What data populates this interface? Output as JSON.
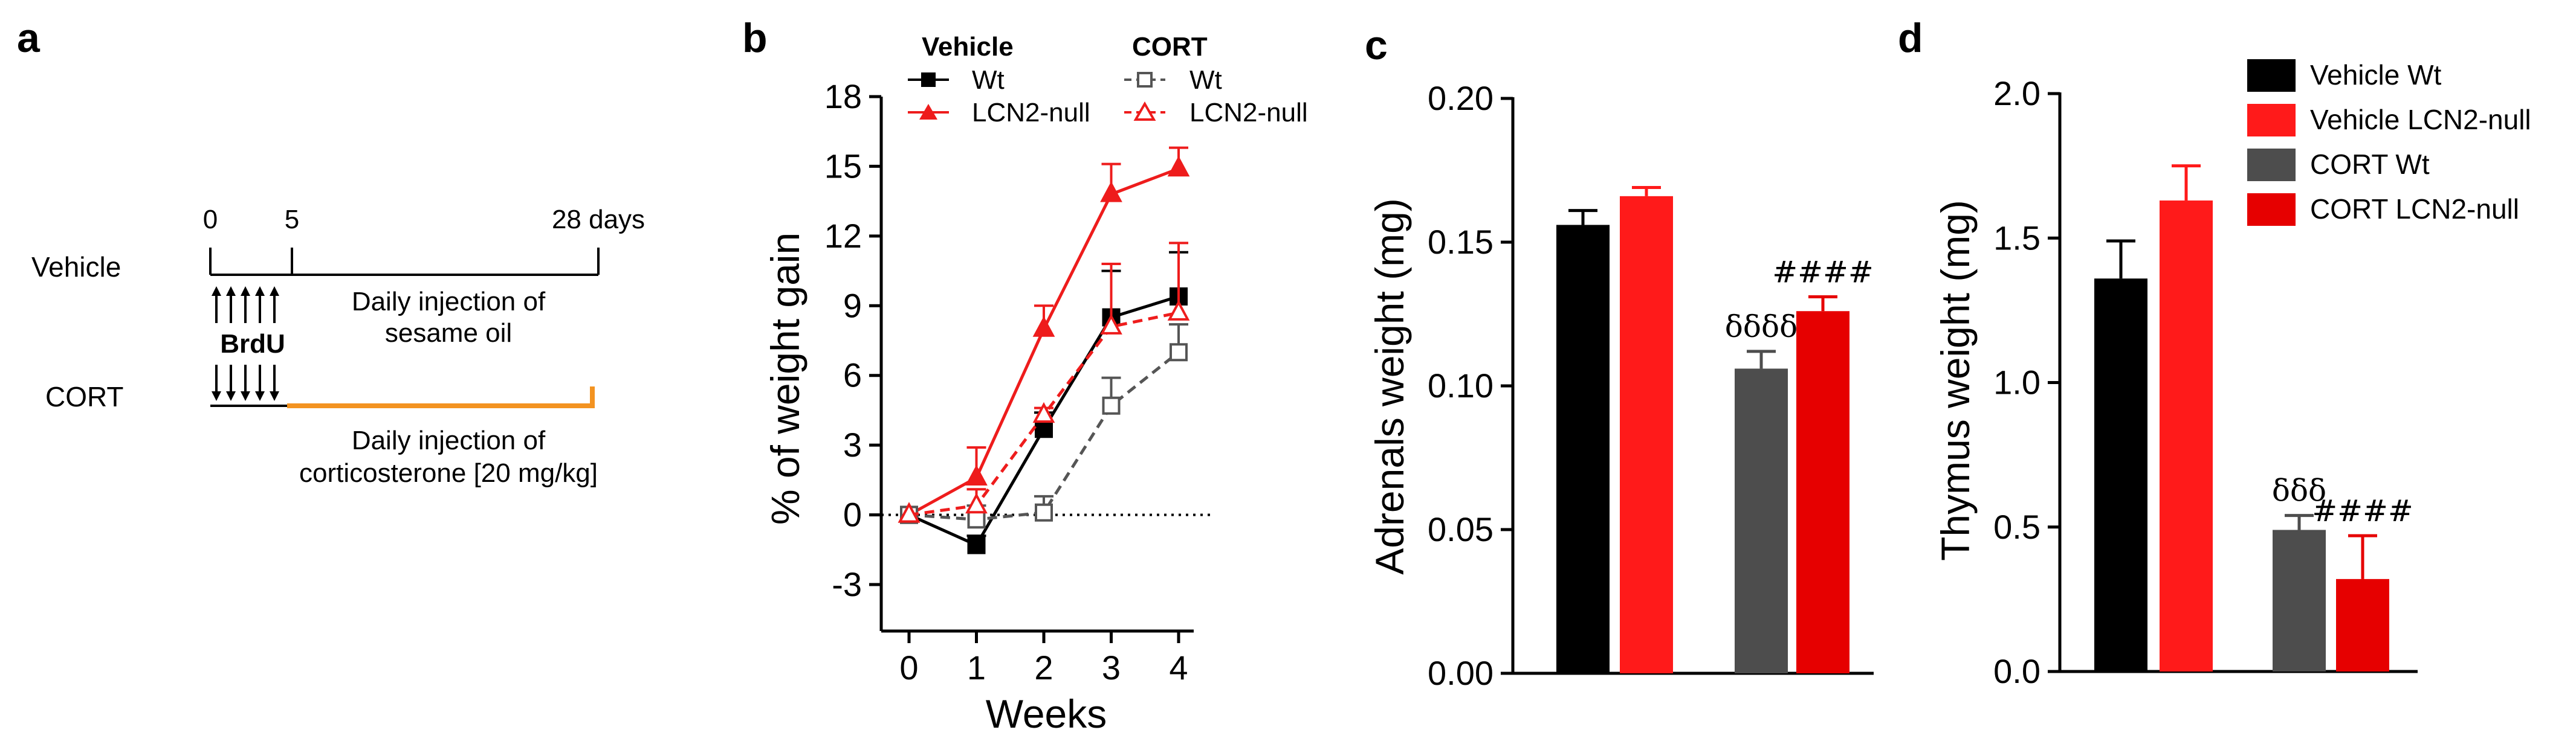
{
  "panels": {
    "a": {
      "letter": "a",
      "labels": {
        "vehicle": "Vehicle",
        "cort": "CORT",
        "day0": "0",
        "day5": "5",
        "day28": "28 days",
        "brdu": "BrdU",
        "veh_line1": "Daily injection of",
        "veh_line2": "sesame oil",
        "cort_line1": "Daily injection of",
        "cort_line2": "corticosterone [20 mg/kg]"
      },
      "colors": {
        "timeline": "#000000",
        "cort_treatment": "#f39321"
      },
      "arrow_count": 5
    },
    "b": {
      "letter": "b",
      "legend": {
        "vehicle_head": "Vehicle",
        "cort_head": "CORT",
        "veh_wt": "Wt",
        "veh_null": "LCN2-null",
        "cort_wt": "Wt",
        "cort_null": "LCN2-null"
      }
    },
    "c": {
      "letter": "c"
    },
    "d": {
      "letter": "d",
      "legend": [
        "Vehicle Wt",
        "Vehicle LCN2-null",
        "CORT Wt",
        "CORT LCN2-null"
      ]
    }
  },
  "chart_data": [
    {
      "id": "b",
      "type": "line",
      "title": "",
      "xlabel": "Weeks",
      "ylabel": "% of weight gain",
      "x": [
        0,
        1,
        2,
        3,
        4
      ],
      "xticks": [
        "0",
        "1",
        "2",
        "3",
        "4"
      ],
      "yticks": [
        "-3",
        "0",
        "3",
        "6",
        "9",
        "12",
        "15",
        "18"
      ],
      "ylim": [
        -5,
        18
      ],
      "reference_line_y": 0,
      "series": [
        {
          "name": "Vehicle Wt",
          "color": "#000000",
          "marker": "square",
          "filled": true,
          "dashed": false,
          "values": [
            0,
            -1.3,
            3.7,
            8.5,
            9.4
          ],
          "errors": [
            0,
            0.4,
            0.7,
            2.0,
            1.9
          ]
        },
        {
          "name": "Vehicle LCN2-null",
          "color": "#ee1c1c",
          "marker": "triangle",
          "filled": true,
          "dashed": false,
          "values": [
            0,
            1.6,
            8.0,
            13.8,
            14.9
          ],
          "errors": [
            0,
            1.3,
            1.0,
            1.3,
            0.9
          ]
        },
        {
          "name": "CORT Wt",
          "color": "#555555",
          "marker": "square",
          "filled": false,
          "dashed": true,
          "values": [
            0,
            -0.2,
            0.1,
            4.7,
            7.0
          ],
          "errors": [
            0,
            0.6,
            0.7,
            1.2,
            1.2
          ]
        },
        {
          "name": "CORT LCN2-null",
          "color": "#ee1c1c",
          "marker": "triangle",
          "filled": false,
          "dashed": true,
          "values": [
            0,
            0.4,
            4.3,
            8.1,
            8.7
          ],
          "errors": [
            0,
            0.7,
            0.3,
            2.7,
            3.0
          ]
        }
      ]
    },
    {
      "id": "c",
      "type": "bar",
      "title": "",
      "xlabel": "",
      "ylabel": "Adrenals weight (mg)",
      "yticks": [
        "0.00",
        "0.05",
        "0.10",
        "0.15",
        "0.20"
      ],
      "ylim": [
        0,
        0.2
      ],
      "categories": [
        "Vehicle Wt",
        "Vehicle LCN2-null",
        "CORT Wt",
        "CORT LCN2-null"
      ],
      "values": [
        0.156,
        0.166,
        0.106,
        0.126
      ],
      "errors": [
        0.005,
        0.003,
        0.006,
        0.005
      ],
      "colors": [
        "#000000",
        "#ff1a1a",
        "#4d4d4d",
        "#e60000"
      ],
      "annotations": [
        "",
        "",
        "δδδδ",
        "####"
      ]
    },
    {
      "id": "d",
      "type": "bar",
      "title": "",
      "xlabel": "",
      "ylabel": "Thymus weight (mg)",
      "yticks": [
        "0.0",
        "0.5",
        "1.0",
        "1.5",
        "2.0"
      ],
      "ylim": [
        0,
        2.0
      ],
      "categories": [
        "Vehicle Wt",
        "Vehicle LCN2-null",
        "CORT Wt",
        "CORT LCN2-null"
      ],
      "values": [
        1.36,
        1.63,
        0.49,
        0.32
      ],
      "errors": [
        0.13,
        0.12,
        0.05,
        0.15
      ],
      "colors": [
        "#000000",
        "#ff1a1a",
        "#4d4d4d",
        "#e60000"
      ],
      "annotations": [
        "",
        "",
        "δδδ",
        "####"
      ]
    }
  ]
}
